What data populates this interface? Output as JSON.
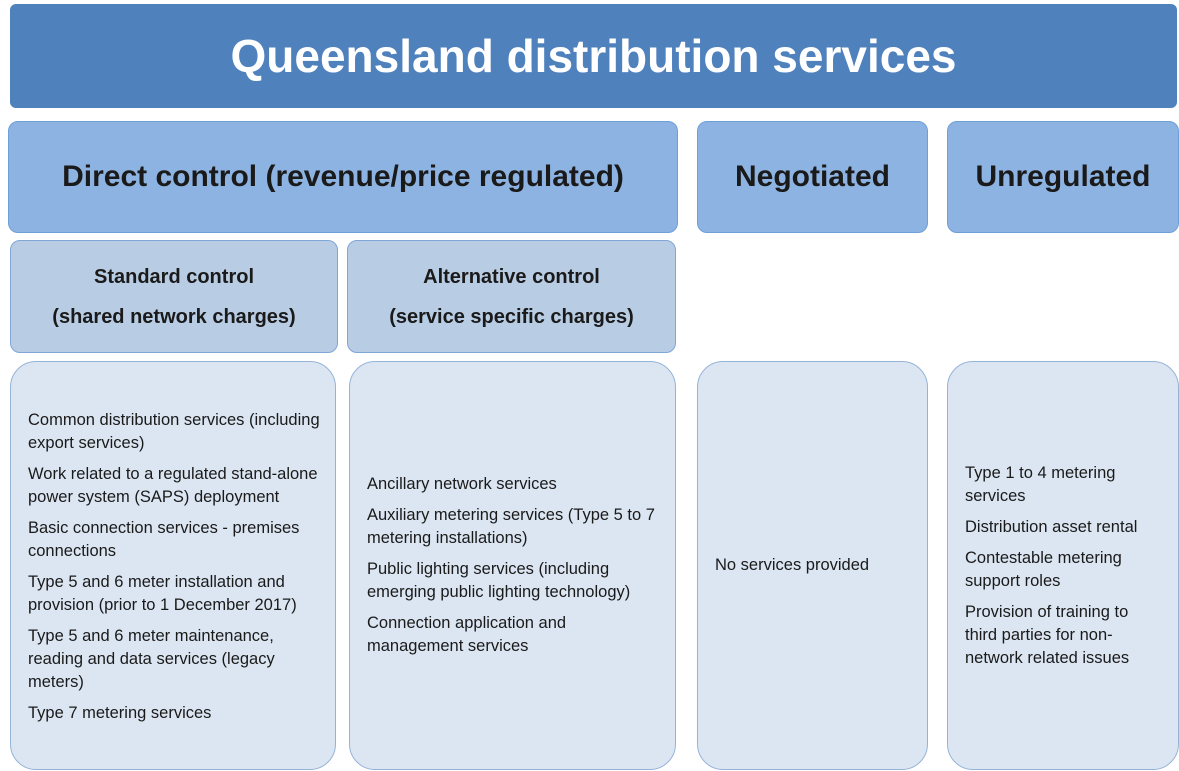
{
  "title": "Queensland distribution services",
  "categories": [
    "Direct control (revenue/price regulated)",
    "Negotiated",
    "Unregulated"
  ],
  "subcategories": [
    {
      "name": "Standard control",
      "note": "(shared network charges)"
    },
    {
      "name": "Alternative control",
      "note": "(service specific charges)"
    }
  ],
  "lists": [
    [
      "Common distribution services (including export services)",
      "Work related to a regulated stand-alone power system (SAPS) deployment",
      "Basic connection services - premises connections",
      "Type 5 and 6 meter installation and provision (prior to 1 December 2017)",
      "Type 5 and 6 meter maintenance, reading and data services (legacy meters)",
      "Type 7 metering services"
    ],
    [
      "Ancillary network services",
      "Auxiliary metering services (Type 5 to 7 metering installations)",
      "Public lighting services (including emerging public lighting technology)",
      "Connection application and management services"
    ],
    [
      "No services provided"
    ],
    [
      "Type 1 to 4 metering services",
      "Distribution asset rental",
      "Contestable metering support roles",
      "Provision of training to third parties for non-network related issues"
    ]
  ]
}
